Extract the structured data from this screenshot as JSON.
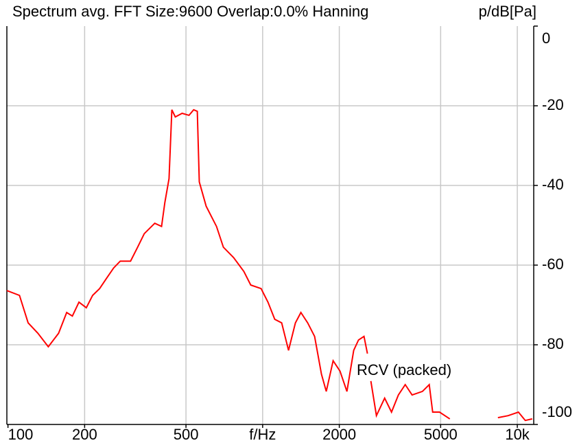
{
  "chart_data": {
    "type": "line",
    "title": "Spectrum avg.  FFT Size:9600  Overlap:0.0%  Hanning",
    "ylabel": "p/dB[Pa]",
    "annotation": "RCV (packed)",
    "xscale": "log",
    "grid": true,
    "xlim": [
      99,
      11600
    ],
    "xticks": [
      100,
      200,
      500,
      {
        "value": 1000,
        "label": "f/Hz"
      },
      2000,
      5000,
      {
        "value": 10000,
        "label": "10k"
      }
    ],
    "ylim": [
      -100,
      0
    ],
    "yticks": [
      0,
      -20,
      -40,
      -60,
      -80,
      -100
    ],
    "series": [
      {
        "name": "RCV (packed)",
        "color": "#ff0000",
        "x": [
          99,
          111,
          120,
          131,
          144,
          158,
          170,
          179,
          190,
          203,
          215,
          229,
          244,
          260,
          276,
          303,
          323,
          343,
          377,
          401,
          413,
          429,
          440,
          454,
          483,
          514,
          536,
          554,
          564,
          600,
          659,
          701,
          769,
          844,
          898,
          986,
          1049,
          1116,
          1188,
          1264,
          1345,
          1413,
          1503,
          1600,
          1702,
          1778,
          1892,
          2013,
          2142,
          2279,
          2380,
          2500,
          2579,
          2620,
          2661,
          2797,
          3013,
          3206,
          3411,
          3629,
          3862,
          4238,
          4510,
          4652,
          4950,
          5433,
          6500,
          8390,
          9204,
          10100,
          10750,
          11440
        ],
        "values": [
          -66.4,
          -67.6,
          -74.5,
          -77.1,
          -80.5,
          -77.1,
          -71.9,
          -72.8,
          -69.3,
          -70.7,
          -67.6,
          -65.9,
          -63.3,
          -60.7,
          -59.0,
          -59.0,
          -55.5,
          -52.1,
          -49.5,
          -50.3,
          -44.3,
          -38.3,
          -21.0,
          -22.8,
          -21.9,
          -22.4,
          -21.0,
          -21.4,
          -39.1,
          -45.2,
          -50.3,
          -55.5,
          -58.1,
          -61.6,
          -65.0,
          -65.9,
          -69.3,
          -73.6,
          -74.5,
          -81.4,
          -74.5,
          -71.9,
          -74.5,
          -77.9,
          -87.4,
          -91.7,
          -84.0,
          -86.6,
          -91.7,
          -81.4,
          -78.8,
          -77.9,
          -82.2,
          null,
          -89.1,
          -97.8,
          -93.4,
          -96.9,
          -92.6,
          -90.0,
          -92.6,
          -91.7,
          -90.0,
          -96.9,
          -96.9,
          -98.6,
          null,
          -98.3,
          -97.8,
          -96.9,
          -99.0,
          -98.6
        ]
      }
    ]
  }
}
